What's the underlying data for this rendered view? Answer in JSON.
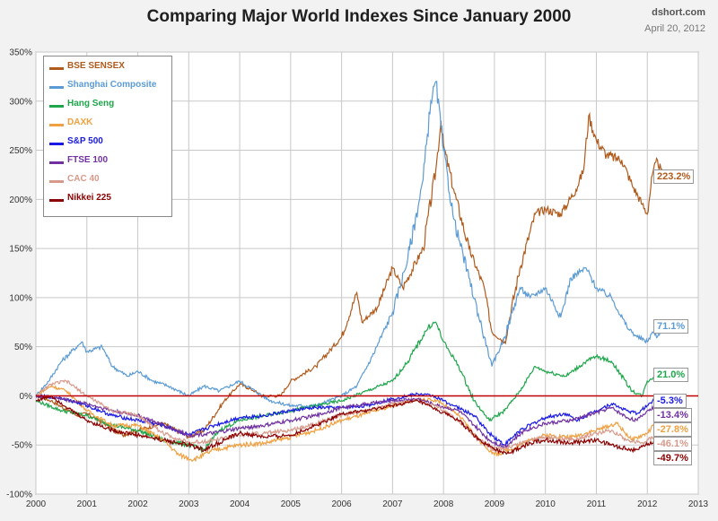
{
  "header": {
    "title": "Comparing Major World Indexes Since January 2000",
    "source": "dshort.com",
    "date": "April 20, 2012"
  },
  "chart_data": {
    "type": "line",
    "title": "Comparing Major World Indexes Since January 2000",
    "xlabel": "",
    "ylabel": "",
    "xlim": [
      2000,
      2013
    ],
    "ylim": [
      -100,
      350
    ],
    "x_ticks": [
      "2000",
      "2001",
      "2002",
      "2003",
      "2004",
      "2005",
      "2006",
      "2007",
      "2008",
      "2009",
      "2010",
      "2011",
      "2012",
      "2013"
    ],
    "y_ticks": [
      "350%",
      "300%",
      "250%",
      "200%",
      "150%",
      "100%",
      "50%",
      "0%",
      "-50%",
      "-100%"
    ],
    "grid": true,
    "legend_position": "top-left",
    "reference_line": 0,
    "series": [
      {
        "name": "BSE SENSEX",
        "color": "#b05a1b",
        "end_label": "223.2%",
        "x": [
          2000.0,
          2000.3,
          2000.8,
          2001.0,
          2001.4,
          2001.7,
          2002.0,
          2002.5,
          2003.0,
          2003.3,
          2003.7,
          2004.0,
          2004.3,
          2004.4,
          2004.8,
          2005.0,
          2005.5,
          2006.0,
          2006.3,
          2006.4,
          2006.7,
          2007.0,
          2007.2,
          2007.6,
          2007.85,
          2007.95,
          2008.0,
          2008.2,
          2008.5,
          2008.8,
          2008.95,
          2009.2,
          2009.5,
          2009.8,
          2010.0,
          2010.3,
          2010.6,
          2010.75,
          2010.85,
          2011.0,
          2011.2,
          2011.5,
          2011.7,
          2011.9,
          2012.0,
          2012.1,
          2012.2,
          2012.3
        ],
        "y": [
          0,
          -5,
          -20,
          -18,
          -30,
          -40,
          -35,
          -28,
          -42,
          -35,
          -5,
          12,
          5,
          0,
          0,
          15,
          30,
          60,
          105,
          75,
          90,
          130,
          110,
          150,
          230,
          280,
          255,
          210,
          150,
          110,
          65,
          55,
          130,
          185,
          190,
          185,
          210,
          230,
          285,
          260,
          245,
          240,
          215,
          195,
          185,
          225,
          240,
          223.2
        ]
      },
      {
        "name": "Shanghai Composite",
        "color": "#5b9bd5",
        "end_label": "71.1%",
        "x": [
          2000.0,
          2000.25,
          2000.5,
          2000.9,
          2001.0,
          2001.3,
          2001.5,
          2001.8,
          2002.0,
          2002.3,
          2002.6,
          2003.0,
          2003.3,
          2003.6,
          2004.0,
          2004.3,
          2004.6,
          2005.0,
          2005.5,
          2006.0,
          2006.3,
          2006.6,
          2007.0,
          2007.3,
          2007.6,
          2007.75,
          2007.85,
          2008.0,
          2008.2,
          2008.5,
          2008.8,
          2008.95,
          2009.2,
          2009.5,
          2009.7,
          2010.0,
          2010.3,
          2010.5,
          2010.8,
          2011.0,
          2011.3,
          2011.6,
          2011.8,
          2012.0,
          2012.1,
          2012.2,
          2012.3
        ],
        "y": [
          0,
          15,
          35,
          55,
          45,
          50,
          30,
          20,
          25,
          15,
          10,
          0,
          10,
          5,
          15,
          5,
          -5,
          -10,
          -10,
          0,
          10,
          40,
          85,
          140,
          220,
          300,
          320,
          250,
          180,
          120,
          60,
          30,
          60,
          110,
          100,
          110,
          80,
          120,
          130,
          110,
          100,
          70,
          60,
          55,
          65,
          60,
          71.1
        ]
      },
      {
        "name": "Hang Seng",
        "color": "#1ea64a",
        "end_label": "21.0%",
        "x": [
          2000.0,
          2000.5,
          2001.0,
          2001.5,
          2002.0,
          2002.5,
          2003.0,
          2003.3,
          2003.6,
          2004.0,
          2004.5,
          2005.0,
          2005.5,
          2006.0,
          2006.5,
          2007.0,
          2007.3,
          2007.7,
          2007.85,
          2008.0,
          2008.3,
          2008.6,
          2008.9,
          2009.2,
          2009.5,
          2009.8,
          2010.0,
          2010.4,
          2010.8,
          2011.0,
          2011.3,
          2011.7,
          2011.9,
          2012.0,
          2012.15,
          2012.3
        ],
        "y": [
          -5,
          -15,
          -20,
          -30,
          -35,
          -45,
          -50,
          -55,
          -35,
          -25,
          -20,
          -15,
          -10,
          -5,
          5,
          15,
          35,
          70,
          75,
          55,
          30,
          -5,
          -25,
          -15,
          5,
          30,
          25,
          20,
          35,
          40,
          35,
          5,
          0,
          15,
          20,
          21.0
        ]
      },
      {
        "name": "DAXK",
        "color": "#f0a040",
        "end_label": "-27.8%",
        "x": [
          2000.0,
          2000.3,
          2000.6,
          2001.0,
          2001.5,
          2002.0,
          2002.5,
          2002.8,
          2003.1,
          2003.5,
          2004.0,
          2004.5,
          2005.0,
          2005.5,
          2006.0,
          2006.5,
          2007.0,
          2007.5,
          2007.9,
          2008.3,
          2008.7,
          2009.0,
          2009.3,
          2009.7,
          2010.0,
          2010.5,
          2011.0,
          2011.4,
          2011.7,
          2012.0,
          2012.2,
          2012.3
        ],
        "y": [
          0,
          10,
          5,
          -15,
          -30,
          -30,
          -45,
          -60,
          -65,
          -55,
          -50,
          -48,
          -42,
          -35,
          -25,
          -18,
          -10,
          -3,
          -5,
          -20,
          -45,
          -60,
          -55,
          -45,
          -40,
          -42,
          -35,
          -28,
          -45,
          -38,
          -25,
          -27.8
        ]
      },
      {
        "name": "S&P 500",
        "color": "#1a1ae6",
        "end_label": "-5.3%",
        "x": [
          2000.0,
          2000.5,
          2001.0,
          2001.5,
          2002.0,
          2002.5,
          2003.0,
          2003.5,
          2004.0,
          2004.5,
          2005.0,
          2005.5,
          2006.0,
          2006.5,
          2007.0,
          2007.5,
          2007.8,
          2008.2,
          2008.6,
          2008.9,
          2009.2,
          2009.5,
          2010.0,
          2010.4,
          2010.6,
          2011.0,
          2011.3,
          2011.6,
          2011.8,
          2012.0,
          2012.15,
          2012.3
        ],
        "y": [
          0,
          -2,
          -10,
          -20,
          -25,
          -30,
          -40,
          -30,
          -22,
          -20,
          -15,
          -12,
          -12,
          -10,
          -3,
          2,
          0,
          -10,
          -20,
          -38,
          -50,
          -35,
          -22,
          -18,
          -25,
          -15,
          -8,
          -15,
          -18,
          -10,
          -3,
          -5.3
        ]
      },
      {
        "name": "FTSE 100",
        "color": "#7030a0",
        "end_label": "-13.4%",
        "x": [
          2000.0,
          2000.5,
          2001.0,
          2001.5,
          2002.0,
          2002.5,
          2003.0,
          2003.5,
          2004.0,
          2004.5,
          2005.0,
          2005.5,
          2006.0,
          2006.5,
          2007.0,
          2007.5,
          2007.9,
          2008.3,
          2008.6,
          2008.9,
          2009.2,
          2009.6,
          2010.0,
          2010.5,
          2011.0,
          2011.3,
          2011.6,
          2011.8,
          2012.0,
          2012.2,
          2012.3
        ],
        "y": [
          0,
          -3,
          -8,
          -15,
          -20,
          -30,
          -40,
          -38,
          -33,
          -30,
          -25,
          -20,
          -12,
          -8,
          -5,
          -3,
          -10,
          -15,
          -30,
          -45,
          -52,
          -35,
          -28,
          -25,
          -17,
          -12,
          -22,
          -25,
          -15,
          -10,
          -13.4
        ]
      },
      {
        "name": "CAC 40",
        "color": "#d79a8a",
        "end_label": "-46.1%",
        "x": [
          2000.0,
          2000.3,
          2000.6,
          2001.0,
          2001.5,
          2002.0,
          2002.5,
          2003.0,
          2003.5,
          2004.0,
          2004.5,
          2005.0,
          2005.5,
          2006.0,
          2006.5,
          2007.0,
          2007.5,
          2007.9,
          2008.3,
          2008.7,
          2009.0,
          2009.3,
          2009.7,
          2010.0,
          2010.5,
          2011.0,
          2011.3,
          2011.6,
          2011.9,
          2012.1,
          2012.3
        ],
        "y": [
          0,
          12,
          15,
          0,
          -15,
          -20,
          -38,
          -48,
          -45,
          -40,
          -38,
          -35,
          -28,
          -20,
          -15,
          -8,
          -5,
          -12,
          -25,
          -45,
          -55,
          -52,
          -45,
          -42,
          -45,
          -38,
          -35,
          -45,
          -48,
          -42,
          -46.1
        ]
      },
      {
        "name": "Nikkei 225",
        "color": "#8b0000",
        "end_label": "-49.7%",
        "x": [
          2000.0,
          2000.3,
          2000.7,
          2001.0,
          2001.5,
          2002.0,
          2002.5,
          2003.0,
          2003.3,
          2003.7,
          2004.0,
          2004.5,
          2005.0,
          2005.5,
          2006.0,
          2006.5,
          2007.0,
          2007.5,
          2007.9,
          2008.3,
          2008.7,
          2009.0,
          2009.3,
          2009.7,
          2010.0,
          2010.5,
          2011.0,
          2011.3,
          2011.7,
          2012.0,
          2012.2,
          2012.3
        ],
        "y": [
          -5,
          0,
          -15,
          -25,
          -35,
          -40,
          -45,
          -50,
          -55,
          -45,
          -38,
          -42,
          -40,
          -30,
          -18,
          -15,
          -10,
          -5,
          -15,
          -25,
          -45,
          -55,
          -58,
          -48,
          -45,
          -48,
          -45,
          -50,
          -55,
          -50,
          -45,
          -49.7
        ]
      }
    ]
  }
}
